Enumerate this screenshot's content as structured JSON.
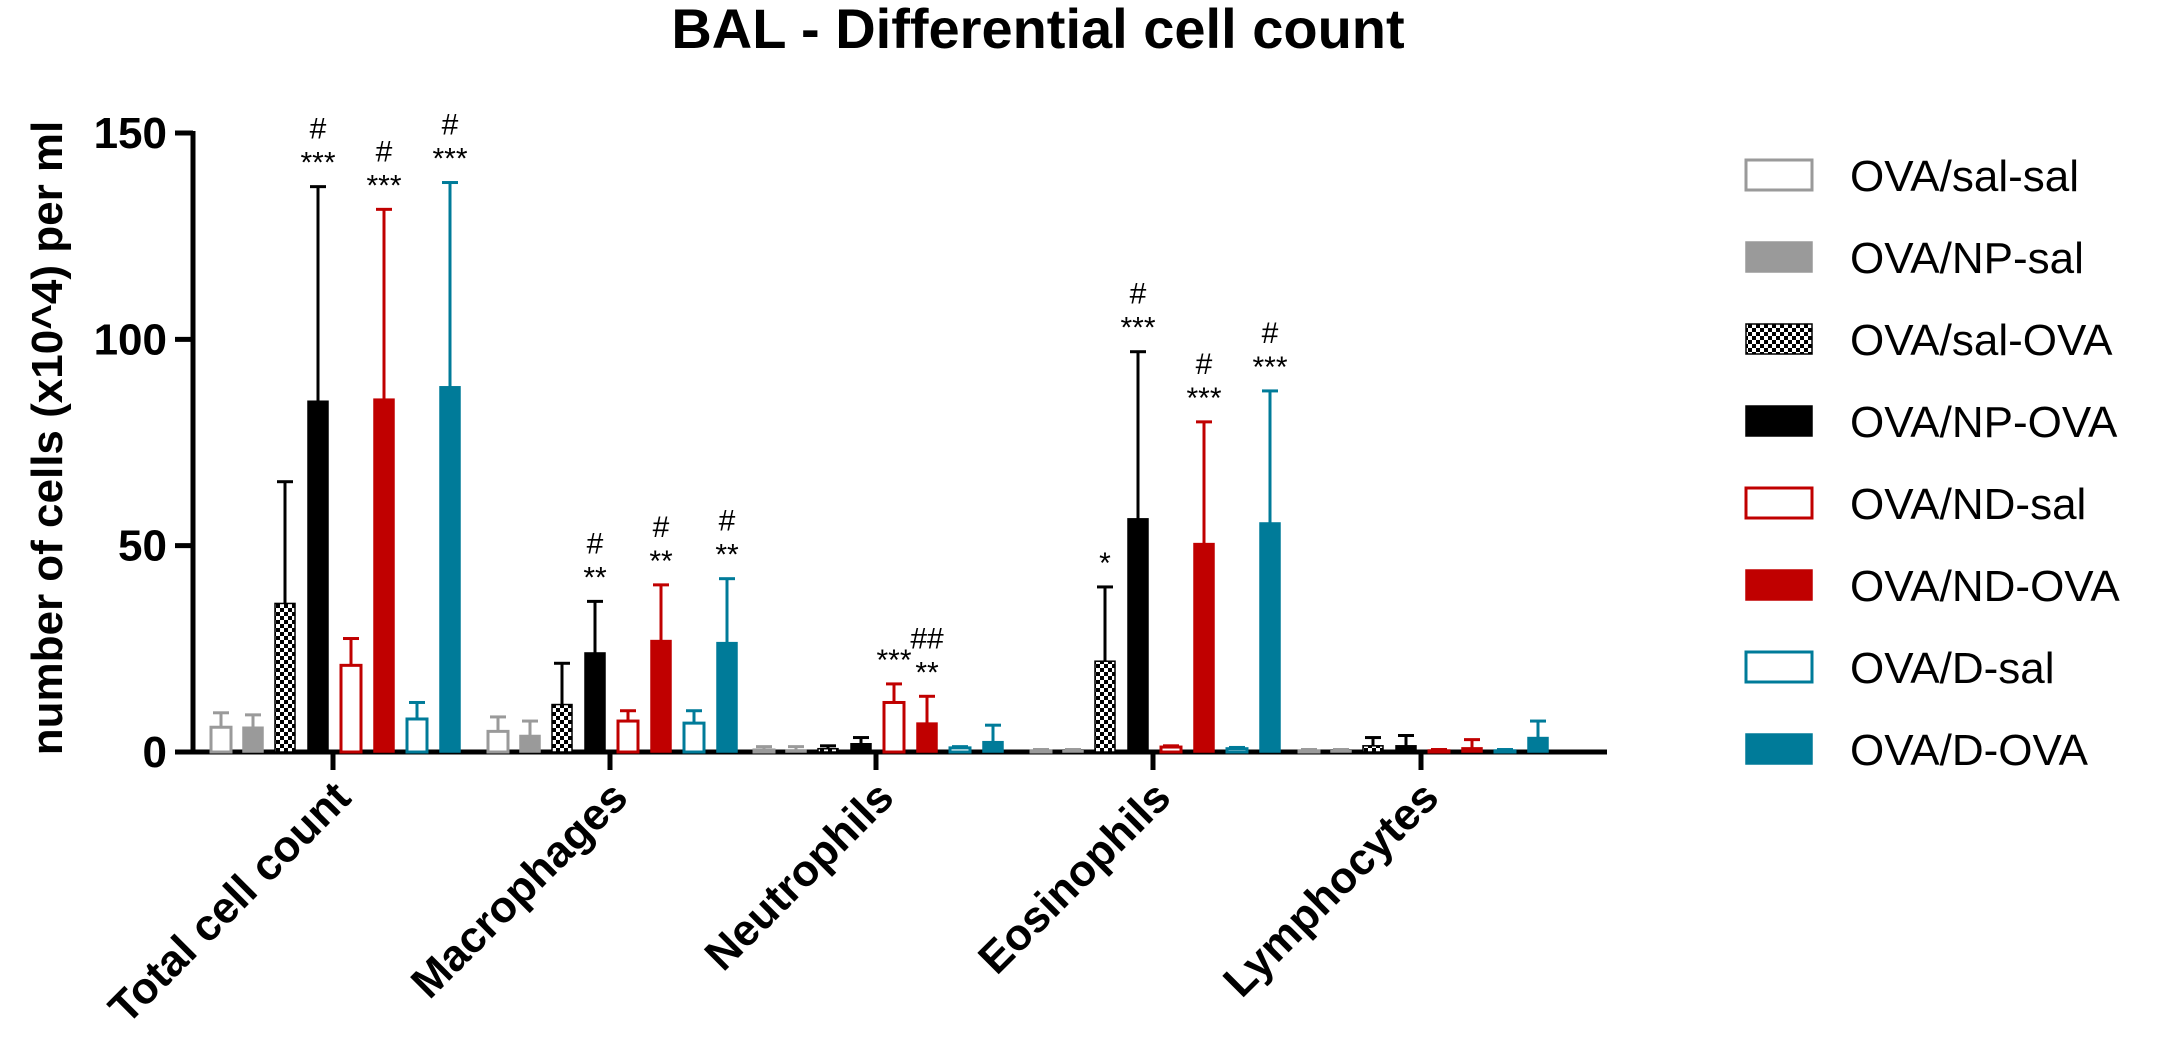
{
  "chart_data": {
    "type": "bar",
    "title": "BAL - Differential cell count",
    "xlabel": "",
    "ylabel": "number of cells (x10^4) per ml",
    "ylim": [
      0,
      150
    ],
    "yticks": [
      "0",
      "50",
      "100",
      "150"
    ],
    "categories": [
      "Total cell count",
      "Macrophages",
      "Neutrophils",
      "Eosinophils",
      "Lymphocytes"
    ],
    "series": [
      {
        "name": "OVA/sal-sal",
        "style": "outline",
        "color": "#9a9a9a",
        "values": [
          6,
          5,
          0.5,
          0.3,
          0.3
        ],
        "errors": [
          3.5,
          3.5,
          0.8,
          0.3,
          0.3
        ],
        "annotations": [
          "",
          "",
          "",
          "",
          ""
        ]
      },
      {
        "name": "OVA/NP-sal",
        "style": "filled",
        "color": "#9a9a9a",
        "values": [
          6,
          4,
          0.5,
          0.3,
          0.3
        ],
        "errors": [
          3,
          3.5,
          0.8,
          0.3,
          0.3
        ],
        "annotations": [
          "",
          "",
          "",
          "",
          ""
        ]
      },
      {
        "name": "OVA/sal-OVA",
        "style": "checker",
        "color": "#000000",
        "values": [
          36,
          11.5,
          0.8,
          22,
          1.5
        ],
        "errors": [
          29.5,
          10,
          0.7,
          18,
          2
        ],
        "annotations": [
          "",
          "",
          "",
          "*",
          ""
        ]
      },
      {
        "name": "OVA/NP-OVA",
        "style": "filled",
        "color": "#000000",
        "values": [
          85,
          24,
          2,
          56.5,
          1.5
        ],
        "errors": [
          52,
          12.5,
          1.5,
          40.5,
          2.5
        ],
        "annotations": [
          "#\n***",
          "#\n**",
          "",
          "#\n***",
          ""
        ]
      },
      {
        "name": "OVA/ND-sal",
        "style": "outline",
        "color": "#c00000",
        "values": [
          21,
          7.5,
          12,
          1.2,
          0.3
        ],
        "errors": [
          6.5,
          2.5,
          4.5,
          0.3,
          0.3
        ],
        "annotations": [
          "",
          "",
          "***",
          "",
          ""
        ]
      },
      {
        "name": "OVA/ND-OVA",
        "style": "filled",
        "color": "#c00000",
        "values": [
          85.5,
          27,
          7,
          50.5,
          1
        ],
        "errors": [
          46,
          13.5,
          6.5,
          29.5,
          2
        ],
        "annotations": [
          "#\n***",
          "#\n**",
          "##\n**",
          "#\n***",
          ""
        ]
      },
      {
        "name": "OVA/D-sal",
        "style": "outline",
        "color": "#007b99",
        "values": [
          8,
          7,
          1,
          0.8,
          0.3
        ],
        "errors": [
          4,
          3,
          0.3,
          0.3,
          0.3
        ],
        "annotations": [
          "",
          "",
          "",
          "",
          ""
        ]
      },
      {
        "name": "OVA/D-OVA",
        "style": "filled",
        "color": "#007b99",
        "values": [
          88.5,
          26.5,
          2.5,
          55.5,
          3.5
        ],
        "errors": [
          49.5,
          15.5,
          4,
          32,
          4
        ],
        "annotations": [
          "#\n***",
          "#\n**",
          "",
          "#\n***",
          ""
        ]
      }
    ],
    "legend_position": "right"
  }
}
